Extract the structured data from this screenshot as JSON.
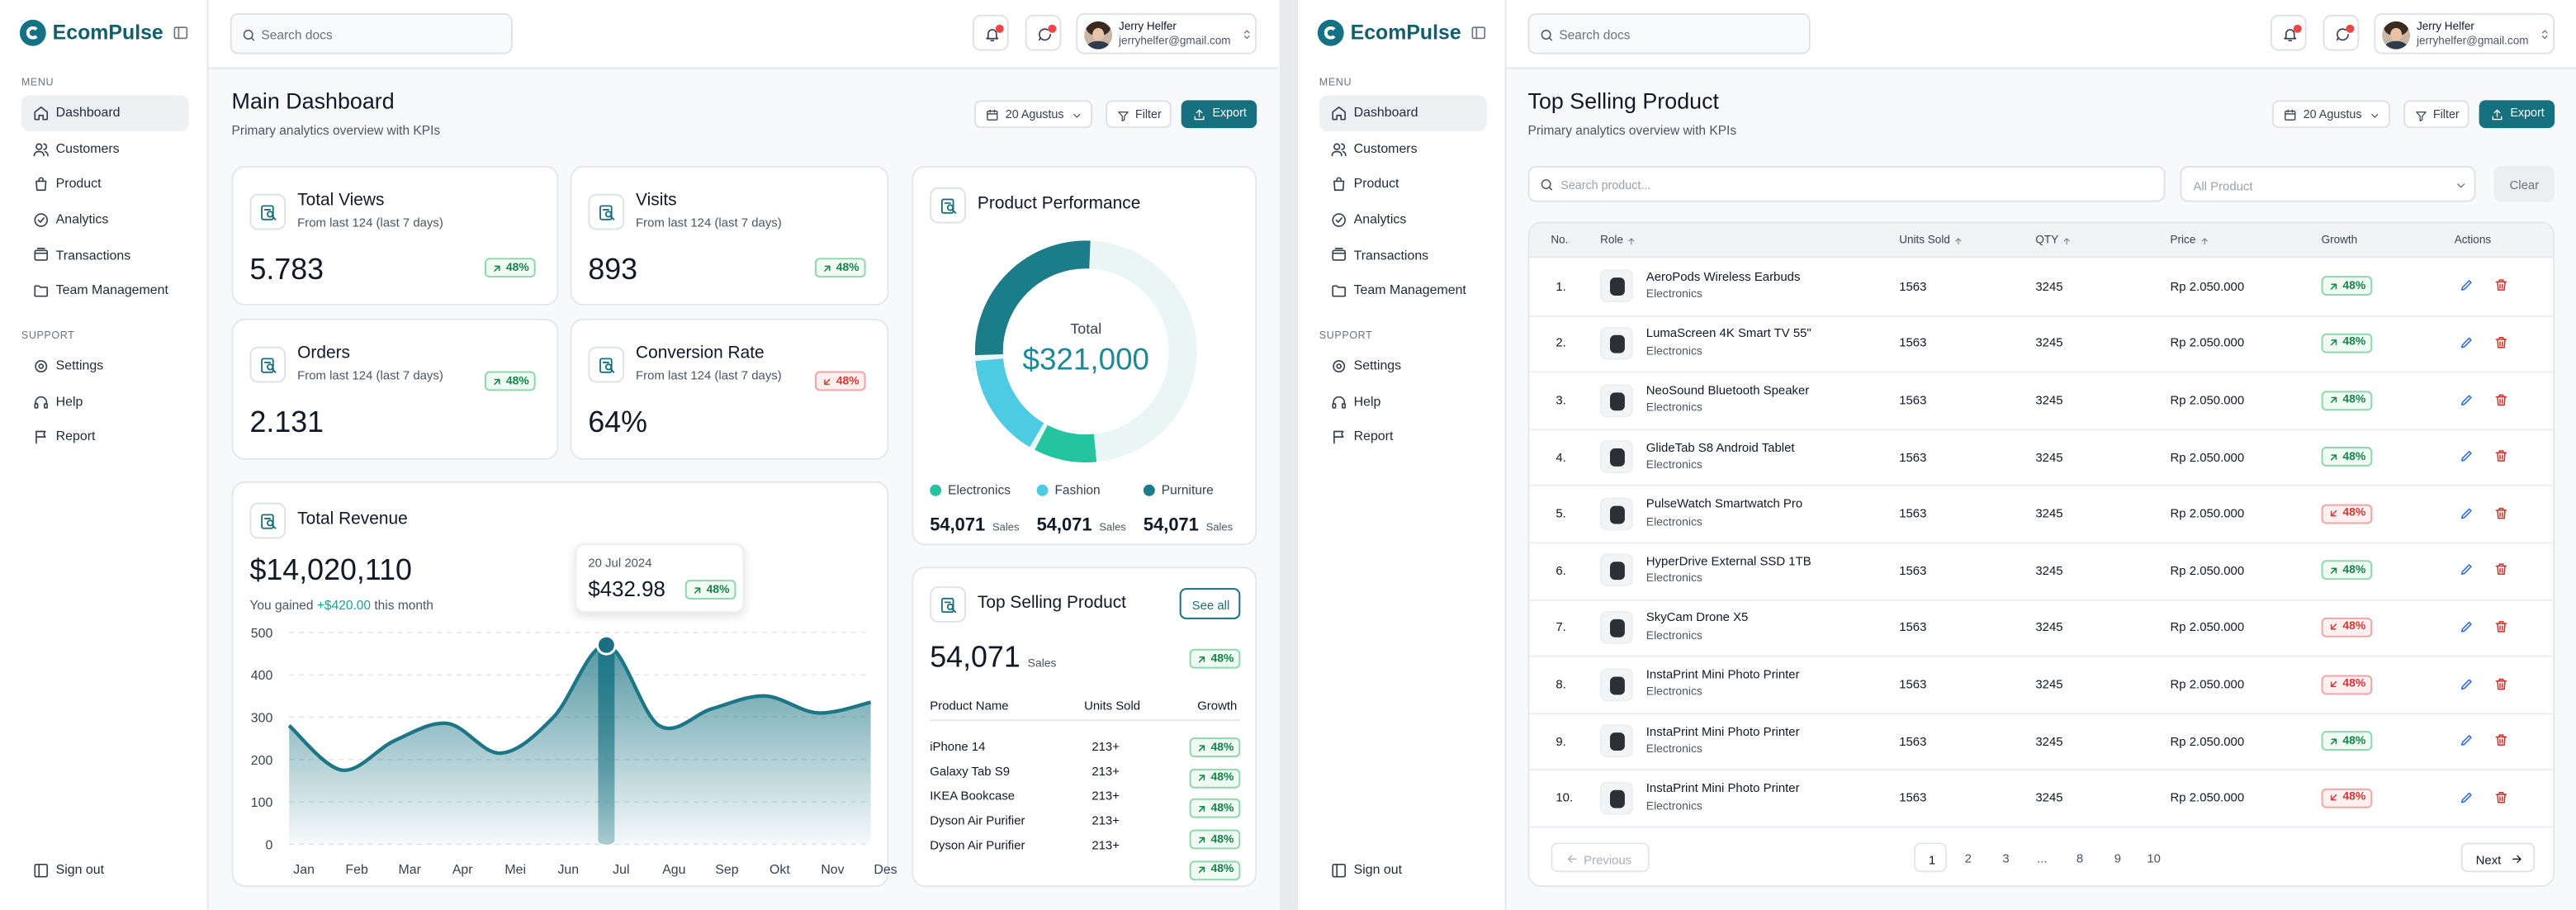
{
  "brand": "EcomPulse",
  "sidebar": {
    "menu_label": "MENU",
    "menu": [
      "Dashboard",
      "Customers",
      "Product",
      "Analytics",
      "Transactions",
      "Team Management"
    ],
    "active": "Dashboard",
    "support_label": "SUPPORT",
    "support": [
      "Settings",
      "Help",
      "Report"
    ],
    "sign_out": "Sign out"
  },
  "topbar": {
    "search_placeholder": "Search docs",
    "user_name": "Jerry Helfer",
    "user_email": "jerryhelfer@gmail.com"
  },
  "toolbar": {
    "date": "20 Agustus",
    "filter": "Filter",
    "export": "Export"
  },
  "dashboard": {
    "title": "Main Dashboard",
    "subtitle": "Primary analytics overview with KPIs",
    "kpis": [
      {
        "title": "Total Views",
        "subtitle": "From last 124 (last 7 days)",
        "value": "5.783",
        "growth": "48%",
        "trend": "up"
      },
      {
        "title": "Visits",
        "subtitle": "From last 124 (last 7 days)",
        "value": "893",
        "growth": "48%",
        "trend": "up"
      },
      {
        "title": "Orders",
        "subtitle": "From last 124 (last 7 days)",
        "value": "2.131",
        "growth": "48%",
        "trend": "up"
      },
      {
        "title": "Conversion Rate",
        "subtitle": "From last 124 (last 7 days)",
        "value": "64%",
        "growth": "48%",
        "trend": "down"
      }
    ],
    "revenue": {
      "title": "Total Revenue",
      "value": "$14,020,110",
      "gain_prefix": "You gained",
      "gain": "+$420.00",
      "gain_suffix": "this month",
      "tooltip": {
        "date": "20 Jul 2024",
        "value": "$432.98",
        "growth": "48%"
      },
      "chart_data": {
        "type": "area",
        "categories": [
          "Jan",
          "Feb",
          "Mar",
          "Apr",
          "Mei",
          "Jun",
          "Jul",
          "Agu",
          "Sep",
          "Okt",
          "Nov",
          "Des"
        ],
        "values": [
          280,
          175,
          245,
          285,
          215,
          300,
          470,
          280,
          320,
          350,
          310,
          335
        ],
        "ylim": [
          0,
          500
        ],
        "yticks": [
          0,
          100,
          200,
          300,
          400,
          500
        ],
        "grid": true,
        "color": "#1d7686",
        "highlight": "Jul"
      }
    },
    "performance": {
      "title": "Product Performance",
      "total_label": "Total",
      "total": "$321,000",
      "sales_unit": "Sales",
      "chart_data": {
        "type": "donut",
        "categories": [
          "Electronics",
          "Fashion",
          "Purniture"
        ],
        "values": [
          10,
          16,
          27
        ],
        "range": [
          0,
          100
        ],
        "colors": [
          "#25c4a1",
          "#4ccbe2",
          "#1b7d8a"
        ],
        "sales": [
          "54,071",
          "54,071",
          "54,071"
        ]
      }
    },
    "top_selling": {
      "title": "Top Selling Product",
      "see_all": "See all",
      "value": "54,071",
      "unit": "Sales",
      "growth": "48%",
      "columns": [
        "Product Name",
        "Units Sold",
        "Growth"
      ],
      "rows": [
        [
          "iPhone 14",
          "213+",
          "48%"
        ],
        [
          "Galaxy Tab S9",
          "213+",
          "48%"
        ],
        [
          "IKEA Bookcase",
          "213+",
          "48%"
        ],
        [
          "Dyson Air Purifier",
          "213+",
          "48%"
        ],
        [
          "Dyson Air Purifier",
          "213+",
          "48%"
        ]
      ]
    }
  },
  "product_page": {
    "title": "Top Selling Product",
    "subtitle": "Primary analytics overview with KPIs",
    "search_placeholder": "Search product...",
    "filter_select": "All Product",
    "clear": "Clear",
    "columns": [
      "No.",
      "Role",
      "Units Sold",
      "QTY",
      "Price",
      "Growth",
      "Actions"
    ],
    "rows": [
      {
        "no": "1.",
        "name": "AeroPods Wireless Earbuds",
        "category": "Electronics",
        "units": "1563",
        "qty": "3245",
        "price": "Rp 2.050.000",
        "growth": "48%",
        "trend": "up"
      },
      {
        "no": "2.",
        "name": "LumaScreen 4K Smart TV 55\"",
        "category": "Electronics",
        "units": "1563",
        "qty": "3245",
        "price": "Rp 2.050.000",
        "growth": "48%",
        "trend": "up"
      },
      {
        "no": "3.",
        "name": "NeoSound Bluetooth Speaker",
        "category": "Electronics",
        "units": "1563",
        "qty": "3245",
        "price": "Rp 2.050.000",
        "growth": "48%",
        "trend": "up"
      },
      {
        "no": "4.",
        "name": "GlideTab S8 Android Tablet",
        "category": "Electronics",
        "units": "1563",
        "qty": "3245",
        "price": "Rp 2.050.000",
        "growth": "48%",
        "trend": "up"
      },
      {
        "no": "5.",
        "name": "PulseWatch Smartwatch Pro",
        "category": "Electronics",
        "units": "1563",
        "qty": "3245",
        "price": "Rp 2.050.000",
        "growth": "48%",
        "trend": "down"
      },
      {
        "no": "6.",
        "name": "HyperDrive External SSD 1TB",
        "category": "Electronics",
        "units": "1563",
        "qty": "3245",
        "price": "Rp 2.050.000",
        "growth": "48%",
        "trend": "up"
      },
      {
        "no": "7.",
        "name": "SkyCam Drone X5",
        "category": "Electronics",
        "units": "1563",
        "qty": "3245",
        "price": "Rp 2.050.000",
        "growth": "48%",
        "trend": "down"
      },
      {
        "no": "8.",
        "name": "InstaPrint Mini Photo Printer",
        "category": "Electronics",
        "units": "1563",
        "qty": "3245",
        "price": "Rp 2.050.000",
        "growth": "48%",
        "trend": "down"
      },
      {
        "no": "9.",
        "name": "InstaPrint Mini Photo Printer",
        "category": "Electronics",
        "units": "1563",
        "qty": "3245",
        "price": "Rp 2.050.000",
        "growth": "48%",
        "trend": "up"
      },
      {
        "no": "10.",
        "name": "InstaPrint Mini Photo Printer",
        "category": "Electronics",
        "units": "1563",
        "qty": "3245",
        "price": "Rp 2.050.000",
        "growth": "48%",
        "trend": "down"
      }
    ],
    "pagination": {
      "previous": "Previous",
      "pages": [
        "1",
        "2",
        "3",
        "...",
        "8",
        "9",
        "10"
      ],
      "active": "1",
      "next": "Next"
    }
  }
}
